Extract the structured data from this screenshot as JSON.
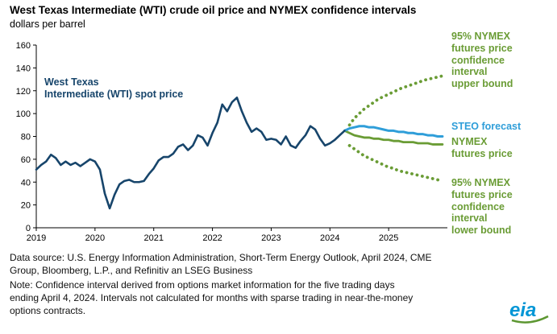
{
  "annotations": {
    "spot_label": "West Texas\nIntermediate (WTI) spot price",
    "ci_upper_label": "95% NYMEX\nfutures price\nconfidence\ninterval\nupper bound",
    "steo_label": "STEO forecast",
    "nymex_label": "NYMEX\nfutures price",
    "ci_lower_label": "95% NYMEX\nfutures price\nconfidence\ninterval\nlower bound"
  },
  "footer": {
    "source": "Data source: U.S. Energy Information Administration, Short-Term Energy Outlook, April 2024, CME\nGroup, Bloomberg, L.P., and Refinitiv an LSEG Business",
    "note": "Note: Confidence interval derived from options market information for the five trading days\nending April 4, 2024. Intervals not calculated for months with sparse trading in near-the-money\noptions contracts.",
    "logo_text": "eia"
  },
  "colors": {
    "navy": "#17456b",
    "steo_blue": "#2f9ed9",
    "green": "#6a9c35",
    "eia_blue": "#0096d6",
    "eia_green": "#5d9732"
  },
  "chart_data": {
    "type": "line",
    "title": "West Texas Intermediate (WTI) crude oil price and NYMEX confidence intervals",
    "xlabel": "",
    "ylabel": "dollars per barrel",
    "ylim": [
      0,
      160
    ],
    "ytick_interval": 20,
    "grid": false,
    "legend": "inline-annotations",
    "x_unit": "month index from 2019-01",
    "x_domain_months": 84,
    "year_ticks": [
      "2019",
      "2020",
      "2021",
      "2022",
      "2023",
      "2024",
      "2025"
    ],
    "series": [
      {
        "id": "wti-spot",
        "name": "West Texas Intermediate (WTI) spot price",
        "start": "2019-01",
        "start_month": 0,
        "style": "solid",
        "width": 2.6,
        "color": "#17456b",
        "values": [
          51,
          55,
          58,
          64,
          61,
          55,
          58,
          55,
          57,
          54,
          57,
          60,
          58,
          51,
          30,
          17,
          29,
          38,
          41,
          42,
          40,
          40,
          41,
          47,
          52,
          59,
          62,
          62,
          65,
          71,
          73,
          68,
          72,
          81,
          79,
          72,
          83,
          92,
          108,
          102,
          110,
          114,
          102,
          92,
          84,
          87,
          84,
          77,
          78,
          77,
          73,
          80,
          72,
          70,
          76,
          81,
          89,
          86,
          78,
          72,
          74,
          77,
          81,
          85
        ]
      },
      {
        "id": "steo-forecast",
        "name": "STEO forecast",
        "start": "2024-04",
        "start_month": 63,
        "style": "solid",
        "width": 3,
        "color": "#2f9ed9",
        "values": [
          85,
          87,
          88,
          89,
          89,
          88,
          88,
          87,
          86,
          85,
          85,
          84,
          84,
          83,
          83,
          82,
          82,
          81,
          81,
          80,
          80
        ]
      },
      {
        "id": "nymex-futures",
        "name": "NYMEX futures price",
        "start": "2024-04",
        "start_month": 63,
        "style": "solid",
        "width": 2.8,
        "color": "#6a9c35",
        "values": [
          85,
          83,
          81,
          80,
          79,
          79,
          78,
          78,
          77,
          77,
          76,
          76,
          75,
          75,
          75,
          74,
          74,
          74,
          73,
          73,
          73
        ]
      },
      {
        "id": "ci-upper",
        "name": "95% NYMEX futures price confidence interval upper bound",
        "start": "2024-05",
        "start_month": 64,
        "style": "dotted",
        "width": 3.8,
        "color": "#6a9c35",
        "values": [
          90,
          96,
          100,
          104,
          107,
          110,
          113,
          115,
          117,
          119,
          121,
          123,
          124,
          126,
          127,
          129,
          130,
          131,
          132,
          133
        ]
      },
      {
        "id": "ci-lower",
        "name": "95% NYMEX futures price confidence interval lower bound",
        "start": "2024-05",
        "start_month": 64,
        "style": "dotted",
        "width": 3.8,
        "color": "#6a9c35",
        "values": [
          72,
          69,
          66,
          63,
          61,
          59,
          57,
          55,
          53,
          52,
          50,
          49,
          48,
          47,
          46,
          45,
          44,
          43,
          42,
          41
        ]
      }
    ]
  }
}
